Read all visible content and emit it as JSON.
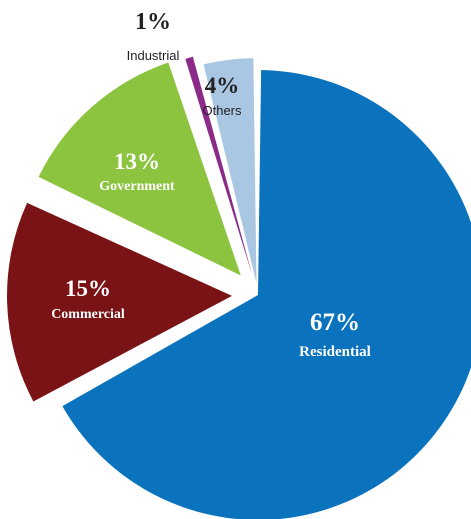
{
  "chart_data": {
    "type": "pie",
    "slices": [
      {
        "label": "Residential",
        "pct_label": "67%",
        "value": 67,
        "color": "#0b72bd",
        "text_color": "#ffffff"
      },
      {
        "label": "Commercial",
        "pct_label": "15%",
        "value": 15,
        "color": "#7a1316",
        "text_color": "#ffffff"
      },
      {
        "label": "Government",
        "pct_label": "13%",
        "value": 13,
        "color": "#8cc43f",
        "text_color": "#ffffff"
      },
      {
        "label": "Industrial",
        "pct_label": "1%",
        "value": 1,
        "color": "#8c2a8a",
        "text_color": "#222222"
      },
      {
        "label": "Others",
        "pct_label": "4%",
        "value": 4,
        "color": "#a9c6e2",
        "text_color": "#222222"
      }
    ]
  }
}
